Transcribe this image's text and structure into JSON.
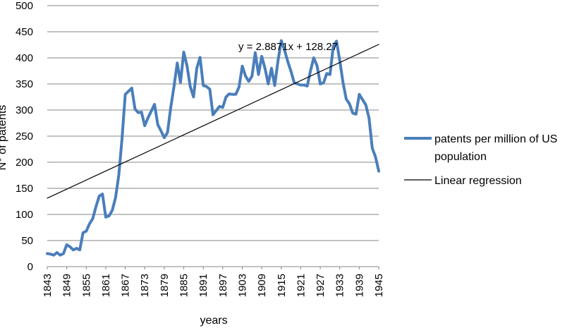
{
  "chart_data": {
    "type": "line",
    "xlabel": "years",
    "ylabel": "N° of patents",
    "ylim": [
      0,
      500
    ],
    "yticks": [
      0,
      50,
      100,
      150,
      200,
      250,
      300,
      350,
      400,
      450,
      500
    ],
    "xlim": [
      1843,
      1945
    ],
    "xticks": [
      1843,
      1849,
      1855,
      1861,
      1867,
      1873,
      1879,
      1885,
      1891,
      1897,
      1903,
      1909,
      1915,
      1921,
      1927,
      1933,
      1939,
      1945
    ],
    "grid": "horizontal",
    "legend_position": "right",
    "regression_equation": "y = 2.8871x + 128.27",
    "series": [
      {
        "name": "patents per million of US population",
        "color": "#4a7ebb",
        "style": "thick-line",
        "x": [
          1843,
          1844,
          1845,
          1846,
          1847,
          1848,
          1849,
          1850,
          1851,
          1852,
          1853,
          1854,
          1855,
          1856,
          1857,
          1858,
          1859,
          1860,
          1861,
          1862,
          1863,
          1864,
          1865,
          1866,
          1867,
          1868,
          1869,
          1870,
          1871,
          1872,
          1873,
          1874,
          1875,
          1876,
          1877,
          1878,
          1879,
          1880,
          1881,
          1882,
          1883,
          1884,
          1885,
          1886,
          1887,
          1888,
          1889,
          1890,
          1891,
          1892,
          1893,
          1894,
          1895,
          1896,
          1897,
          1898,
          1899,
          1900,
          1901,
          1902,
          1903,
          1904,
          1905,
          1906,
          1907,
          1908,
          1909,
          1910,
          1911,
          1912,
          1913,
          1914,
          1915,
          1916,
          1917,
          1918,
          1919,
          1920,
          1921,
          1922,
          1923,
          1924,
          1925,
          1926,
          1927,
          1928,
          1929,
          1930,
          1931,
          1932,
          1933,
          1934,
          1935,
          1936,
          1937,
          1938,
          1939,
          1940,
          1941,
          1942,
          1943,
          1944,
          1945
        ],
        "values": [
          25,
          24,
          22,
          27,
          22,
          25,
          42,
          38,
          32,
          35,
          32,
          65,
          68,
          82,
          92,
          115,
          135,
          139,
          95,
          97,
          108,
          132,
          175,
          245,
          330,
          336,
          342,
          302,
          295,
          296,
          270,
          285,
          298,
          311,
          272,
          260,
          247,
          257,
          305,
          345,
          390,
          353,
          411,
          385,
          345,
          325,
          380,
          401,
          347,
          345,
          340,
          291,
          299,
          307,
          305,
          325,
          331,
          330,
          330,
          344,
          384,
          365,
          355,
          365,
          410,
          368,
          403,
          380,
          350,
          380,
          347,
          395,
          433,
          415,
          393,
          374,
          352,
          350,
          348,
          348,
          346,
          375,
          400,
          385,
          350,
          352,
          370,
          368,
          422,
          432,
          395,
          353,
          321,
          312,
          294,
          292,
          330,
          320,
          310,
          285,
          227,
          210,
          183
        ]
      },
      {
        "name": "Linear regression",
        "color": "#000000",
        "style": "thin-line",
        "x": [
          1843,
          1945
        ],
        "values": [
          131.16,
          425.64
        ]
      }
    ]
  }
}
